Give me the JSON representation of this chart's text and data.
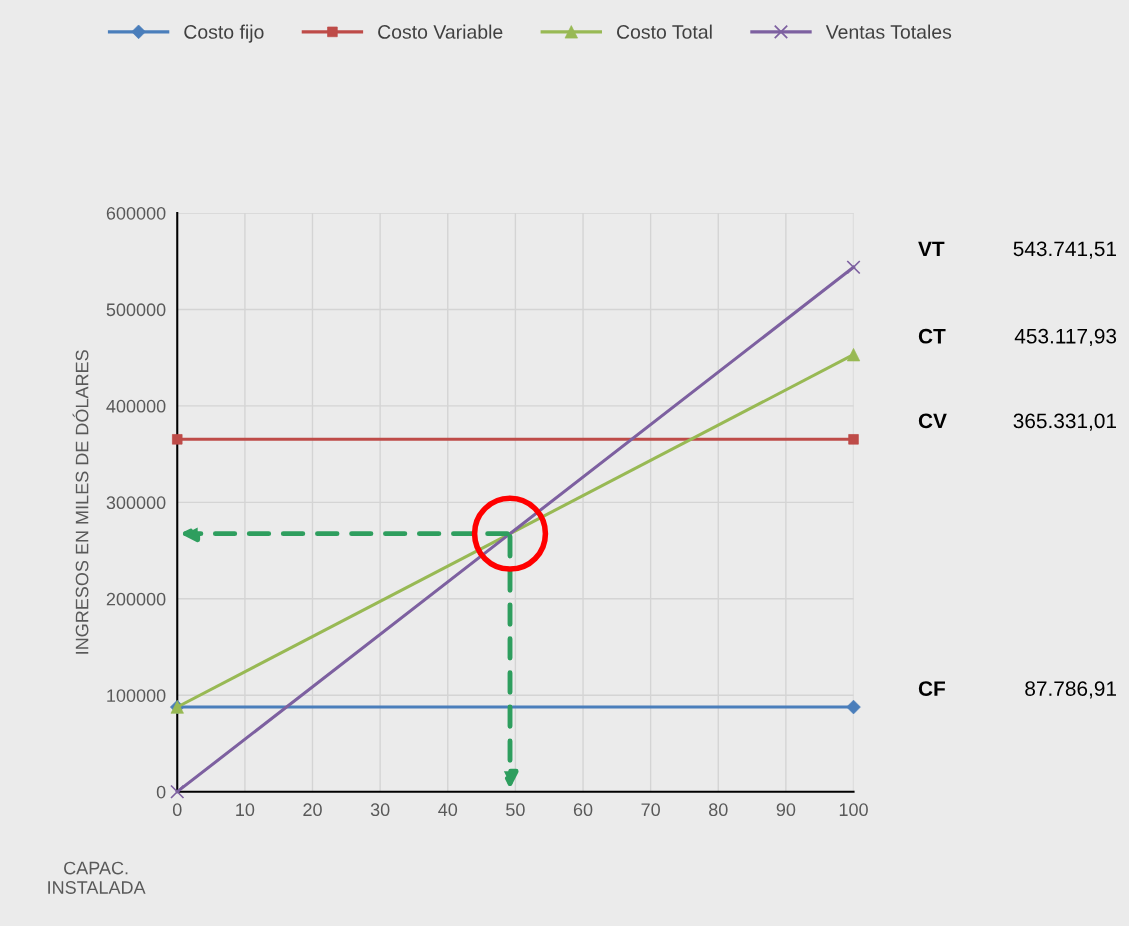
{
  "chart_data": {
    "type": "line",
    "ylabel": "INGRESOS EN MILES DE DÓLARES",
    "xlabel": "CAPAC. INSTALADA",
    "x": [
      0,
      100
    ],
    "series": [
      {
        "name": "Costo fijo",
        "color": "#4a7ebb",
        "marker": "diamond",
        "values": [
          87786.91,
          87786.91
        ]
      },
      {
        "name": "Costo Variable",
        "color": "#be4b48",
        "marker": "square",
        "values": [
          365331.01,
          365331.01
        ]
      },
      {
        "name": "Costo Total",
        "color": "#98b954",
        "marker": "triangle",
        "values": [
          87786.91,
          453117.93
        ]
      },
      {
        "name": "Ventas Totales",
        "color": "#7d60a0",
        "marker": "cross",
        "values": [
          0,
          543741.51
        ]
      }
    ],
    "annotations": [
      "VT",
      "543.741,51",
      "CT",
      "453.117,93",
      "CV",
      "365.331,01",
      "CF",
      "87.786,91"
    ],
    "xlim": [
      0,
      100
    ],
    "xticks": [
      0,
      10,
      20,
      30,
      40,
      50,
      60,
      70,
      80,
      90,
      100
    ],
    "ylim": [
      0,
      600000
    ],
    "yticks": [
      0,
      100000,
      200000,
      300000,
      400000,
      500000,
      600000
    ],
    "grid": true,
    "legend": "top",
    "line_style": "solid"
  }
}
